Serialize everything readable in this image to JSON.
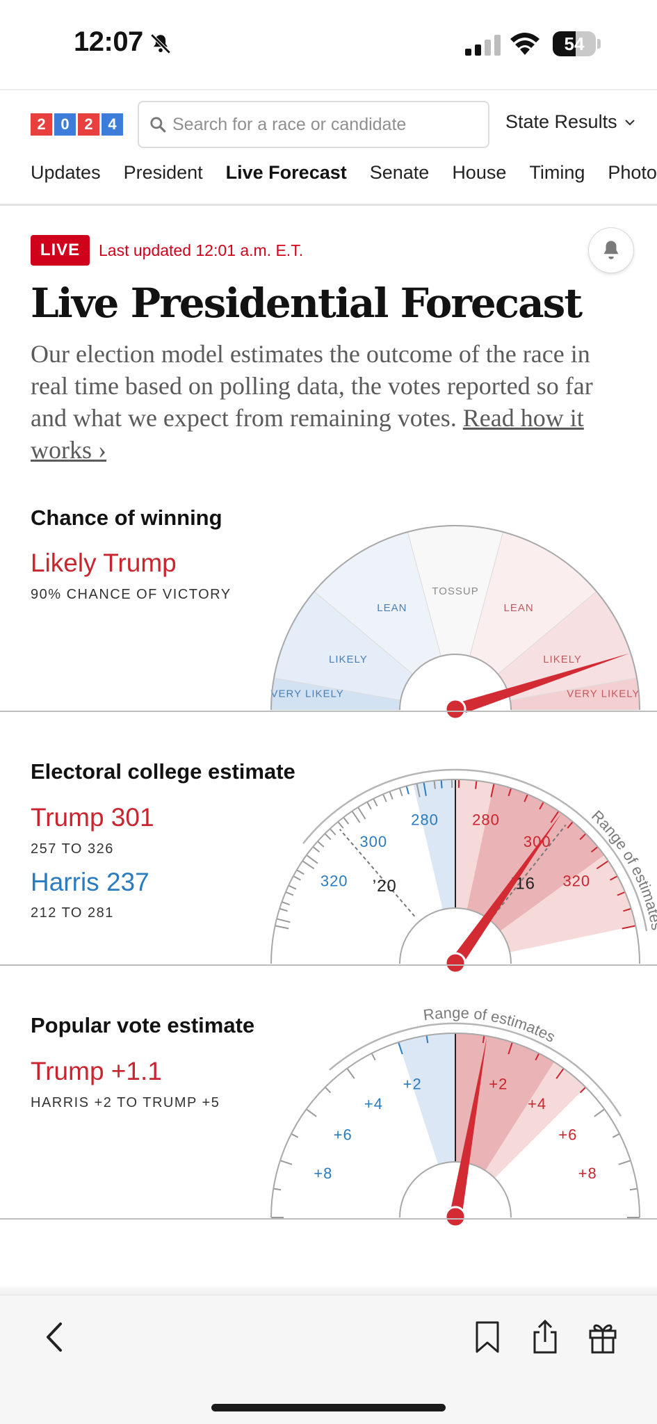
{
  "status_bar": {
    "time": "12:07",
    "battery": "54"
  },
  "header": {
    "logo_digits": [
      "2",
      "0",
      "2",
      "4"
    ],
    "search_placeholder": "Search for a race or candidate",
    "state_results": "State Results"
  },
  "nav": {
    "items": [
      "Updates",
      "President",
      "Live Forecast",
      "Senate",
      "House",
      "Timing",
      "Photos"
    ],
    "active": "Live Forecast"
  },
  "live": {
    "badge": "LIVE",
    "last_updated": "Last updated 12:01 a.m. E.T."
  },
  "page": {
    "title": "Live Presidential Forecast",
    "description": "Our election model estimates the outcome of the race in real time based on polling data, the votes reported so far and what we expect from remaining votes.",
    "read_more": "Read how it works ›"
  },
  "chance": {
    "label": "Chance of winning",
    "headline": "Likely Trump",
    "detail": "90% CHANCE OF VICTORY",
    "win_probability_trump": 0.9,
    "segments": [
      "VERY LIKELY",
      "LIKELY",
      "LEAN",
      "TOSSUP",
      "LEAN",
      "LIKELY",
      "VERY LIKELY"
    ]
  },
  "electoral": {
    "label": "Electoral college estimate",
    "trump_line": "Trump 301",
    "trump_range": "257 TO 326",
    "harris_line": "Harris 237",
    "harris_range": "212 TO 281",
    "range_caption": "Range of estimates",
    "trump_estimate": 301,
    "trump_low": 257,
    "trump_high": 326,
    "harris_low": 212,
    "harris_high": 281,
    "marker_2020": "’20",
    "marker_2016": "’16",
    "tick_labels_blue": [
      "280",
      "300",
      "320"
    ],
    "tick_labels_red": [
      "280",
      "300",
      "320"
    ]
  },
  "popular": {
    "label": "Popular vote estimate",
    "headline": "Trump +1.1",
    "range": "HARRIS +2 TO TRUMP +5",
    "range_caption": "Range of estimates",
    "margin_trump": 1.1,
    "low": -2,
    "high": 5,
    "tick_labels_blue": [
      "+2",
      "+4",
      "+6",
      "+8"
    ],
    "tick_labels_red": [
      "+2",
      "+4",
      "+6",
      "+8"
    ]
  },
  "colors": {
    "red": "#c9252f",
    "blue": "#2a7bbf",
    "needle": "#d22b33",
    "live": "#d0021b"
  },
  "icons": [
    "bell-off-icon",
    "cellular-signal-icon",
    "wifi-icon",
    "battery-icon",
    "search-icon",
    "chevron-down-icon",
    "bell-icon",
    "back-chevron-icon",
    "bookmark-icon",
    "share-icon",
    "gift-icon"
  ]
}
